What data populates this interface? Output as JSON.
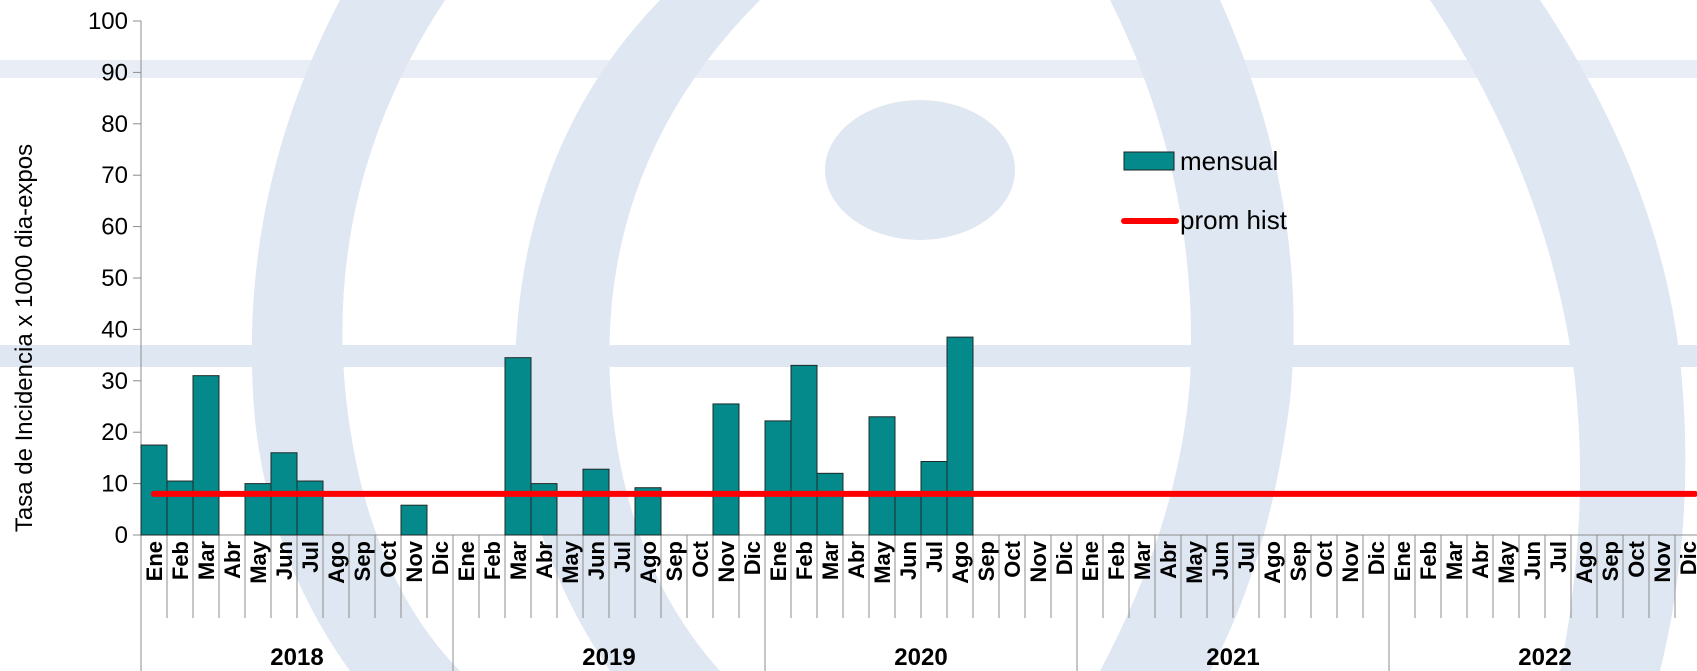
{
  "chart_data": {
    "type": "bar",
    "ylabel": "Tasa de Incidencia x 1000 dia-expos",
    "ylim": [
      0,
      100
    ],
    "yticks": [
      0,
      10,
      20,
      30,
      40,
      50,
      60,
      70,
      80,
      90,
      100
    ],
    "years": [
      "2018",
      "2019",
      "2020",
      "2021",
      "2022"
    ],
    "months": [
      "Ene",
      "Feb",
      "Mar",
      "Abr",
      "May",
      "Jun",
      "Jul",
      "Ago",
      "Sep",
      "Oct",
      "Nov",
      "Dic"
    ],
    "series": [
      {
        "name": "mensual",
        "type": "bar",
        "color": "#048a8a",
        "values": [
          17.5,
          10.5,
          31,
          null,
          10,
          16,
          10.5,
          null,
          null,
          null,
          5.8,
          null,
          null,
          null,
          34.5,
          10,
          null,
          12.8,
          null,
          9.2,
          null,
          null,
          25.5,
          null,
          22.2,
          33,
          12,
          null,
          23,
          8,
          14.3,
          38.5,
          null,
          null,
          null,
          null,
          null,
          null,
          null,
          null,
          null,
          null,
          null,
          null,
          null,
          null,
          null,
          null,
          null,
          null,
          null,
          null,
          null,
          null,
          null,
          null,
          null,
          null,
          null,
          null
        ]
      },
      {
        "name": "prom hist",
        "type": "line",
        "color": "#ff0000",
        "value": 8
      }
    ],
    "legend_position": "right"
  }
}
